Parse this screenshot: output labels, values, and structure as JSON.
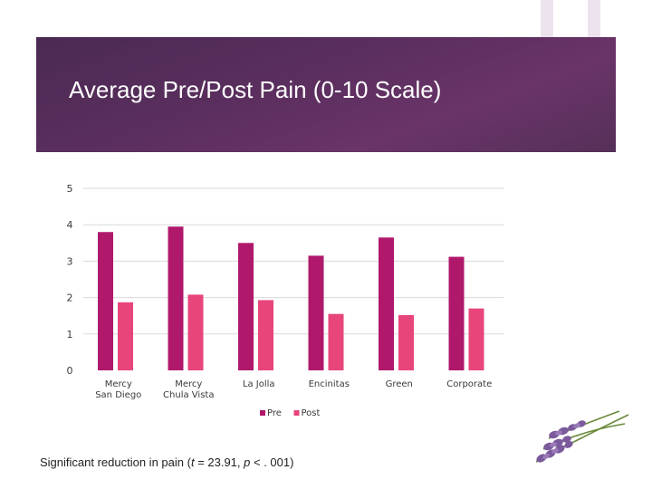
{
  "slide": {
    "title": "Average Pre/Post Pain (0-10 Scale)",
    "footnote_prefix": "Significant reduction in pain (",
    "footnote_stat_symbol": "t",
    "footnote_stat_value": " = 23.91, ",
    "footnote_p_symbol": "p",
    "footnote_p_value": " < . 001)"
  },
  "colors": {
    "pre": "#b0196b",
    "post": "#e8457a",
    "gridline": "#d9d9d9"
  },
  "chart_data": {
    "type": "bar",
    "title": "Average Pre/Post Pain (0-10 Scale)",
    "xlabel": "",
    "ylabel": "",
    "ylim": [
      0,
      5
    ],
    "yticks": [
      0,
      1,
      2,
      3,
      4,
      5
    ],
    "grid": true,
    "legend_position": "bottom",
    "categories": [
      [
        "Mercy",
        "San Diego"
      ],
      [
        "Mercy",
        "Chula Vista"
      ],
      [
        "La Jolla"
      ],
      [
        "Encinitas"
      ],
      [
        "Green"
      ],
      [
        "Corporate"
      ]
    ],
    "series": [
      {
        "name": "Pre",
        "values": [
          3.8,
          3.95,
          3.5,
          3.15,
          3.65,
          3.12
        ]
      },
      {
        "name": "Post",
        "values": [
          1.87,
          2.08,
          1.93,
          1.55,
          1.52,
          1.7
        ]
      }
    ]
  }
}
